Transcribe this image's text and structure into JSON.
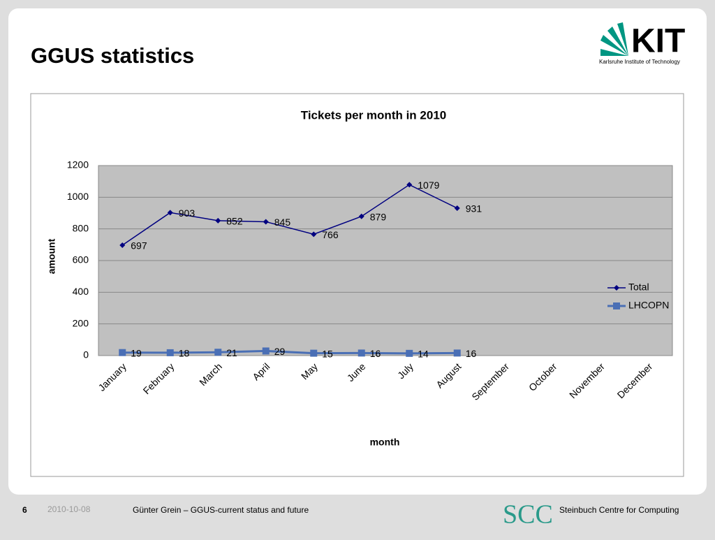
{
  "header": {
    "title": "GGUS statistics",
    "logo": "KIT",
    "logo_subtitle": "Karlsruhe Institute of Technology"
  },
  "footer": {
    "page": "6",
    "date": "2010-10-08",
    "author": "Günter Grein – GGUS-current status and future",
    "logo": "SCC",
    "org": "Steinbuch Centre for Computing"
  },
  "chart_data": {
    "type": "line",
    "title": "Tickets per month in 2010",
    "x_label": "month",
    "y_label": "amount",
    "categories": [
      "January",
      "February",
      "March",
      "April",
      "May",
      "June",
      "July",
      "August",
      "September",
      "October",
      "November",
      "December"
    ],
    "series": [
      {
        "name": "Total",
        "color": "#000080",
        "marker": "diamond",
        "values": [
          697,
          903,
          852,
          845,
          766,
          879,
          1079,
          931,
          null,
          null,
          null,
          null
        ]
      },
      {
        "name": "LHCOPN",
        "color": "#4a6fb5",
        "marker": "square",
        "values": [
          19,
          18,
          21,
          29,
          15,
          16,
          14,
          16,
          null,
          null,
          null,
          null
        ]
      }
    ],
    "ylim": [
      0,
      1200
    ],
    "yticks": [
      0,
      200,
      400,
      600,
      800,
      1000,
      1200
    ],
    "grid": true,
    "legend": "right"
  }
}
